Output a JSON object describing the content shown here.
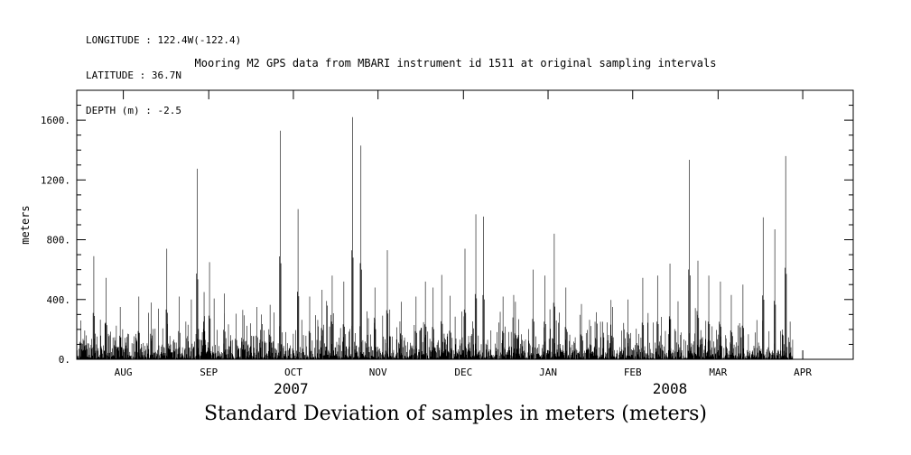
{
  "header": {
    "lines": [
      "LONGITUDE : 122.4W(-122.4)",
      "LATITUDE : 36.7N",
      "DEPTH (m) : -2.5"
    ]
  },
  "title": "Mooring M2 GPS data from MBARI instrument id 1511 at original sampling intervals",
  "caption": "Standard Deviation of samples in meters (meters)",
  "chart_data": {
    "type": "line",
    "title": "Mooring M2 GPS data from MBARI instrument id 1511 at original sampling intervals",
    "xlabel": "",
    "ylabel": "meters",
    "ylim": [
      0,
      1800
    ],
    "grid": false,
    "legend": "none",
    "yticks": [
      {
        "label": "0.",
        "value": 0
      },
      {
        "label": "400.",
        "value": 400
      },
      {
        "label": "800.",
        "value": 800
      },
      {
        "label": "1200.",
        "value": 1200
      },
      {
        "label": "1600.",
        "value": 1600
      }
    ],
    "xticks": [
      {
        "label": "AUG",
        "pos": 0.06
      },
      {
        "label": "SEP",
        "pos": 0.17
      },
      {
        "label": "OCT",
        "pos": 0.279
      },
      {
        "label": "NOV",
        "pos": 0.388
      },
      {
        "label": "DEC",
        "pos": 0.498
      },
      {
        "label": "JAN",
        "pos": 0.607
      },
      {
        "label": "FEB",
        "pos": 0.716
      },
      {
        "label": "MAR",
        "pos": 0.826
      },
      {
        "label": "APR",
        "pos": 0.935
      }
    ],
    "year_labels": [
      {
        "text": "2007",
        "pos": 0.276
      },
      {
        "text": "2008",
        "pos": 0.764
      }
    ],
    "noise": {
      "seed": 20071511,
      "points": 1700,
      "base_scale": 55,
      "spike_prob": 0.09,
      "spike_scale": 260,
      "cap": 430,
      "end_fraction": 0.922
    },
    "peaks": [
      [
        0.005,
        260
      ],
      [
        0.022,
        690
      ],
      [
        0.038,
        545
      ],
      [
        0.056,
        350
      ],
      [
        0.08,
        420
      ],
      [
        0.096,
        380
      ],
      [
        0.116,
        740
      ],
      [
        0.132,
        420
      ],
      [
        0.155,
        1275
      ],
      [
        0.164,
        450
      ],
      [
        0.171,
        650
      ],
      [
        0.19,
        440
      ],
      [
        0.205,
        305
      ],
      [
        0.232,
        350
      ],
      [
        0.249,
        365
      ],
      [
        0.262,
        1530
      ],
      [
        0.285,
        1005
      ],
      [
        0.3,
        420
      ],
      [
        0.316,
        465
      ],
      [
        0.329,
        560
      ],
      [
        0.344,
        520
      ],
      [
        0.355,
        1620
      ],
      [
        0.366,
        1430
      ],
      [
        0.384,
        480
      ],
      [
        0.4,
        730
      ],
      [
        0.418,
        385
      ],
      [
        0.437,
        420
      ],
      [
        0.449,
        520
      ],
      [
        0.459,
        480
      ],
      [
        0.47,
        565
      ],
      [
        0.481,
        425
      ],
      [
        0.5,
        740
      ],
      [
        0.514,
        970
      ],
      [
        0.524,
        955
      ],
      [
        0.549,
        420
      ],
      [
        0.565,
        385
      ],
      [
        0.588,
        600
      ],
      [
        0.603,
        560
      ],
      [
        0.615,
        840
      ],
      [
        0.63,
        480
      ],
      [
        0.65,
        370
      ],
      [
        0.669,
        315
      ],
      [
        0.69,
        350
      ],
      [
        0.71,
        400
      ],
      [
        0.729,
        545
      ],
      [
        0.748,
        560
      ],
      [
        0.764,
        640
      ],
      [
        0.789,
        1335
      ],
      [
        0.8,
        660
      ],
      [
        0.814,
        560
      ],
      [
        0.829,
        520
      ],
      [
        0.843,
        430
      ],
      [
        0.858,
        500
      ],
      [
        0.884,
        950
      ],
      [
        0.899,
        870
      ],
      [
        0.913,
        1360
      ]
    ]
  }
}
